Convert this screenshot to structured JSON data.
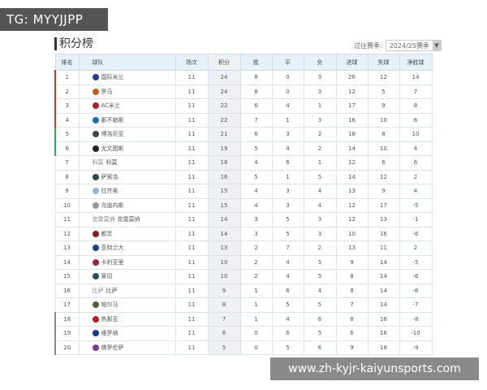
{
  "overlay": {
    "tag": "TG: MYYJJPP",
    "watermark": "www.zh-kyjr-kaiyunsports.com"
  },
  "header": {
    "title": "积分榜",
    "season_label": "过往赛季:",
    "season_value": "2024/25赛季"
  },
  "columns": [
    "排名",
    "球队",
    "场次",
    "积分",
    "胜",
    "平",
    "负",
    "进球",
    "失球",
    "净胜球"
  ],
  "zone_colors": {
    "cl": "#c0392b",
    "el": "#27ae60",
    "rel": "#888888"
  },
  "rows": [
    {
      "rank": "1",
      "team": "国际米兰",
      "played": "11",
      "pts": "24",
      "w": "8",
      "d": "0",
      "l": "3",
      "gf": "26",
      "ga": "12",
      "gd": "14",
      "zone": "cl",
      "logo": "#2a3a8c"
    },
    {
      "rank": "2",
      "team": "罗马",
      "played": "11",
      "pts": "24",
      "w": "8",
      "d": "0",
      "l": "3",
      "gf": "12",
      "ga": "5",
      "gd": "7",
      "zone": "cl",
      "logo": "#c0602b"
    },
    {
      "rank": "3",
      "team": "AC米兰",
      "played": "11",
      "pts": "22",
      "w": "6",
      "d": "4",
      "l": "1",
      "gf": "17",
      "ga": "9",
      "gd": "8",
      "zone": "cl",
      "logo": "#b01e23"
    },
    {
      "rank": "4",
      "team": "那不勒斯",
      "played": "11",
      "pts": "22",
      "w": "7",
      "d": "1",
      "l": "3",
      "gf": "16",
      "ga": "10",
      "gd": "6",
      "zone": "cl",
      "logo": "#1f6fb5"
    },
    {
      "rank": "5",
      "team": "博洛尼亚",
      "played": "11",
      "pts": "21",
      "w": "6",
      "d": "3",
      "l": "2",
      "gf": "18",
      "ga": "8",
      "gd": "10",
      "zone": "el",
      "logo": "#444"
    },
    {
      "rank": "6",
      "team": "尤文图斯",
      "played": "11",
      "pts": "19",
      "w": "5",
      "d": "4",
      "l": "2",
      "gf": "14",
      "ga": "10",
      "gd": "4",
      "zone": "el",
      "logo": "#222"
    },
    {
      "rank": "7",
      "team": "科莫",
      "alt": "科莫",
      "played": "11",
      "pts": "18",
      "w": "4",
      "d": "6",
      "l": "1",
      "gf": "12",
      "ga": "6",
      "gd": "6",
      "zone": "",
      "logo": ""
    },
    {
      "rank": "8",
      "team": "萨索洛",
      "played": "11",
      "pts": "16",
      "w": "5",
      "d": "1",
      "l": "5",
      "gf": "14",
      "ga": "12",
      "gd": "2",
      "zone": "",
      "logo": "#2e4d3a"
    },
    {
      "rank": "9",
      "team": "拉齐奥",
      "played": "11",
      "pts": "15",
      "w": "4",
      "d": "3",
      "l": "4",
      "gf": "13",
      "ga": "9",
      "gd": "4",
      "zone": "",
      "logo": "#8fb8d8"
    },
    {
      "rank": "10",
      "team": "乌迪内斯",
      "played": "11",
      "pts": "15",
      "w": "4",
      "d": "3",
      "l": "4",
      "gf": "12",
      "ga": "17",
      "gd": "-5",
      "zone": "",
      "logo": "#999"
    },
    {
      "rank": "11",
      "team": "克雷莫纳",
      "alt": "克雷莫纳",
      "played": "11",
      "pts": "14",
      "w": "3",
      "d": "5",
      "l": "3",
      "gf": "12",
      "ga": "13",
      "gd": "-1",
      "zone": "",
      "logo": ""
    },
    {
      "rank": "12",
      "team": "都灵",
      "played": "11",
      "pts": "14",
      "w": "3",
      "d": "5",
      "l": "3",
      "gf": "10",
      "ga": "16",
      "gd": "-6",
      "zone": "",
      "logo": "#8b1a1a"
    },
    {
      "rank": "13",
      "team": "亚特兰大",
      "played": "11",
      "pts": "13",
      "w": "2",
      "d": "7",
      "l": "2",
      "gf": "13",
      "ga": "11",
      "gd": "2",
      "zone": "",
      "logo": "#1c3f8a"
    },
    {
      "rank": "14",
      "team": "卡利亚里",
      "played": "11",
      "pts": "10",
      "w": "2",
      "d": "4",
      "l": "5",
      "gf": "9",
      "ga": "14",
      "gd": "-5",
      "zone": "",
      "logo": "#a02040"
    },
    {
      "rank": "15",
      "team": "莱切",
      "played": "11",
      "pts": "10",
      "w": "2",
      "d": "4",
      "l": "5",
      "gf": "8",
      "ga": "14",
      "gd": "-6",
      "zone": "",
      "logo": "#2a5060"
    },
    {
      "rank": "16",
      "team": "比萨",
      "alt": "比萨",
      "played": "11",
      "pts": "9",
      "w": "1",
      "d": "6",
      "l": "4",
      "gf": "8",
      "ga": "14",
      "gd": "-6",
      "zone": "",
      "logo": ""
    },
    {
      "rank": "17",
      "team": "帕尔马",
      "played": "11",
      "pts": "8",
      "w": "1",
      "d": "5",
      "l": "5",
      "gf": "7",
      "ga": "14",
      "gd": "-7",
      "zone": "",
      "logo": "#5a5a3a"
    },
    {
      "rank": "18",
      "team": "热那亚",
      "played": "11",
      "pts": "7",
      "w": "1",
      "d": "4",
      "l": "6",
      "gf": "8",
      "ga": "16",
      "gd": "-8",
      "zone": "rel",
      "logo": "#b02020"
    },
    {
      "rank": "19",
      "team": "维罗纳",
      "played": "11",
      "pts": "6",
      "w": "0",
      "d": "6",
      "l": "5",
      "gf": "6",
      "ga": "16",
      "gd": "-10",
      "zone": "rel",
      "logo": "#1a3a8a"
    },
    {
      "rank": "20",
      "team": "佛罗伦萨",
      "played": "11",
      "pts": "5",
      "w": "0",
      "d": "5",
      "l": "6",
      "gf": "9",
      "ga": "18",
      "gd": "-9",
      "zone": "rel",
      "logo": "#7a3a9a"
    }
  ]
}
